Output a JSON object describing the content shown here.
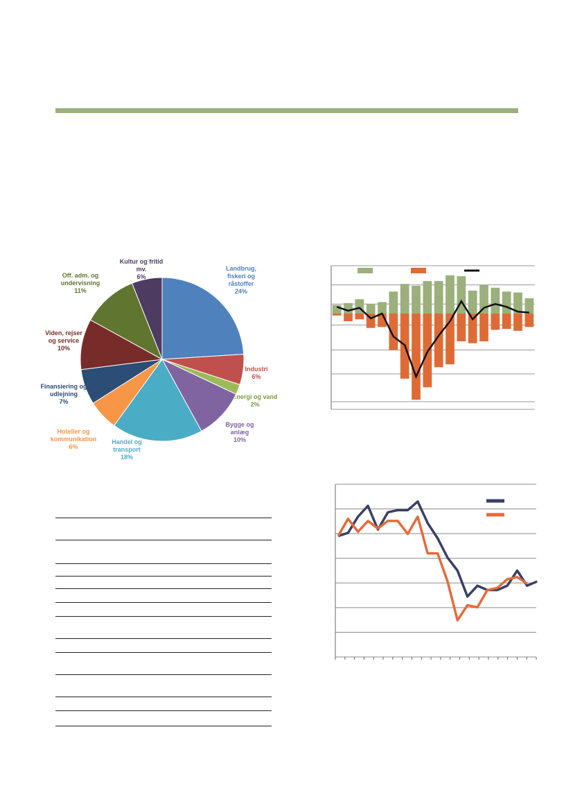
{
  "colors": {
    "rule": "#9bb07c",
    "bar_positive": "#9bb07c",
    "bar_negative": "#de6b35",
    "net_line": "#111111",
    "line_a": "#3a3f66",
    "line_b": "#e56a3a"
  },
  "chart_data": [
    {
      "type": "pie",
      "slices": [
        {
          "label_lines": [
            "Landbrug,",
            "fiskeri og",
            "råstoffer"
          ],
          "pct_label": "24%",
          "value": 24,
          "color": "#4f81bd"
        },
        {
          "label_lines": [
            "Industri"
          ],
          "pct_label": "6%",
          "value": 6,
          "color": "#c0504d"
        },
        {
          "label_lines": [
            "Energi og vand"
          ],
          "pct_label": "2%",
          "value": 2,
          "color": "#9bbb59"
        },
        {
          "label_lines": [
            "Bygge og",
            "anlæg"
          ],
          "pct_label": "10%",
          "value": 10,
          "color": "#8064a2"
        },
        {
          "label_lines": [
            "Handel og",
            "transport"
          ],
          "pct_label": "18%",
          "value": 18,
          "color": "#4bacc6"
        },
        {
          "label_lines": [
            "Hoteller og",
            "kommunikation"
          ],
          "pct_label": "6%",
          "value": 6,
          "color": "#f79646"
        },
        {
          "label_lines": [
            "Finansiering og",
            "udlejning"
          ],
          "pct_label": "7%",
          "value": 7,
          "color": "#2c4d75"
        },
        {
          "label_lines": [
            "Viden, rejser",
            "og service"
          ],
          "pct_label": "10%",
          "value": 10,
          "color": "#772c2a"
        },
        {
          "label_lines": [
            "Off. adm. og",
            "undervisning"
          ],
          "pct_label": "11%",
          "value": 11,
          "color": "#5f7530"
        },
        {
          "label_lines": [
            "Kultur og fritid",
            "mv."
          ],
          "pct_label": "6%",
          "value": 6,
          "color": "#4d3b62"
        }
      ]
    },
    {
      "type": "bar",
      "positive": [
        0.9,
        1.1,
        1.5,
        1.0,
        1.2,
        2.3,
        3.1,
        2.9,
        3.4,
        3.4,
        4.0,
        3.9,
        2.4,
        3.0,
        2.7,
        2.3,
        2.2,
        1.6
      ],
      "negative": [
        -0.2,
        -0.8,
        -0.6,
        -1.5,
        -1.4,
        -3.8,
        -6.8,
        -9.0,
        -7.7,
        -5.6,
        -5.3,
        -2.9,
        -3.1,
        -2.9,
        -1.7,
        -1.6,
        -1.8,
        -1.4
      ],
      "net": [
        0.7,
        0.3,
        0.6,
        -0.5,
        0.0,
        -2.4,
        -3.3,
        -6.6,
        -4.0,
        -2.3,
        -0.8,
        1.3,
        -0.6,
        0.6,
        1.0,
        0.7,
        0.2,
        0.1
      ],
      "ylim": [
        -10,
        5
      ],
      "grid": true
    },
    {
      "type": "line",
      "series": [
        {
          "values": [
            3.6,
            3.75,
            4.5,
            5.0,
            3.9,
            4.7,
            4.8,
            4.8,
            5.2,
            4.2,
            3.5,
            2.6,
            2.0,
            0.8,
            1.3,
            1.1,
            1.1,
            1.3,
            2.0,
            1.3,
            1.5
          ]
        },
        {
          "values": [
            3.6,
            4.4,
            3.8,
            4.3,
            3.95,
            4.3,
            4.3,
            3.7,
            4.5,
            2.8,
            2.8,
            1.5,
            -0.3,
            0.4,
            0.3,
            1.1,
            1.2,
            1.6,
            1.7,
            1.4
          ]
        }
      ],
      "ylim": [
        -2,
        6
      ],
      "grid": true
    }
  ]
}
